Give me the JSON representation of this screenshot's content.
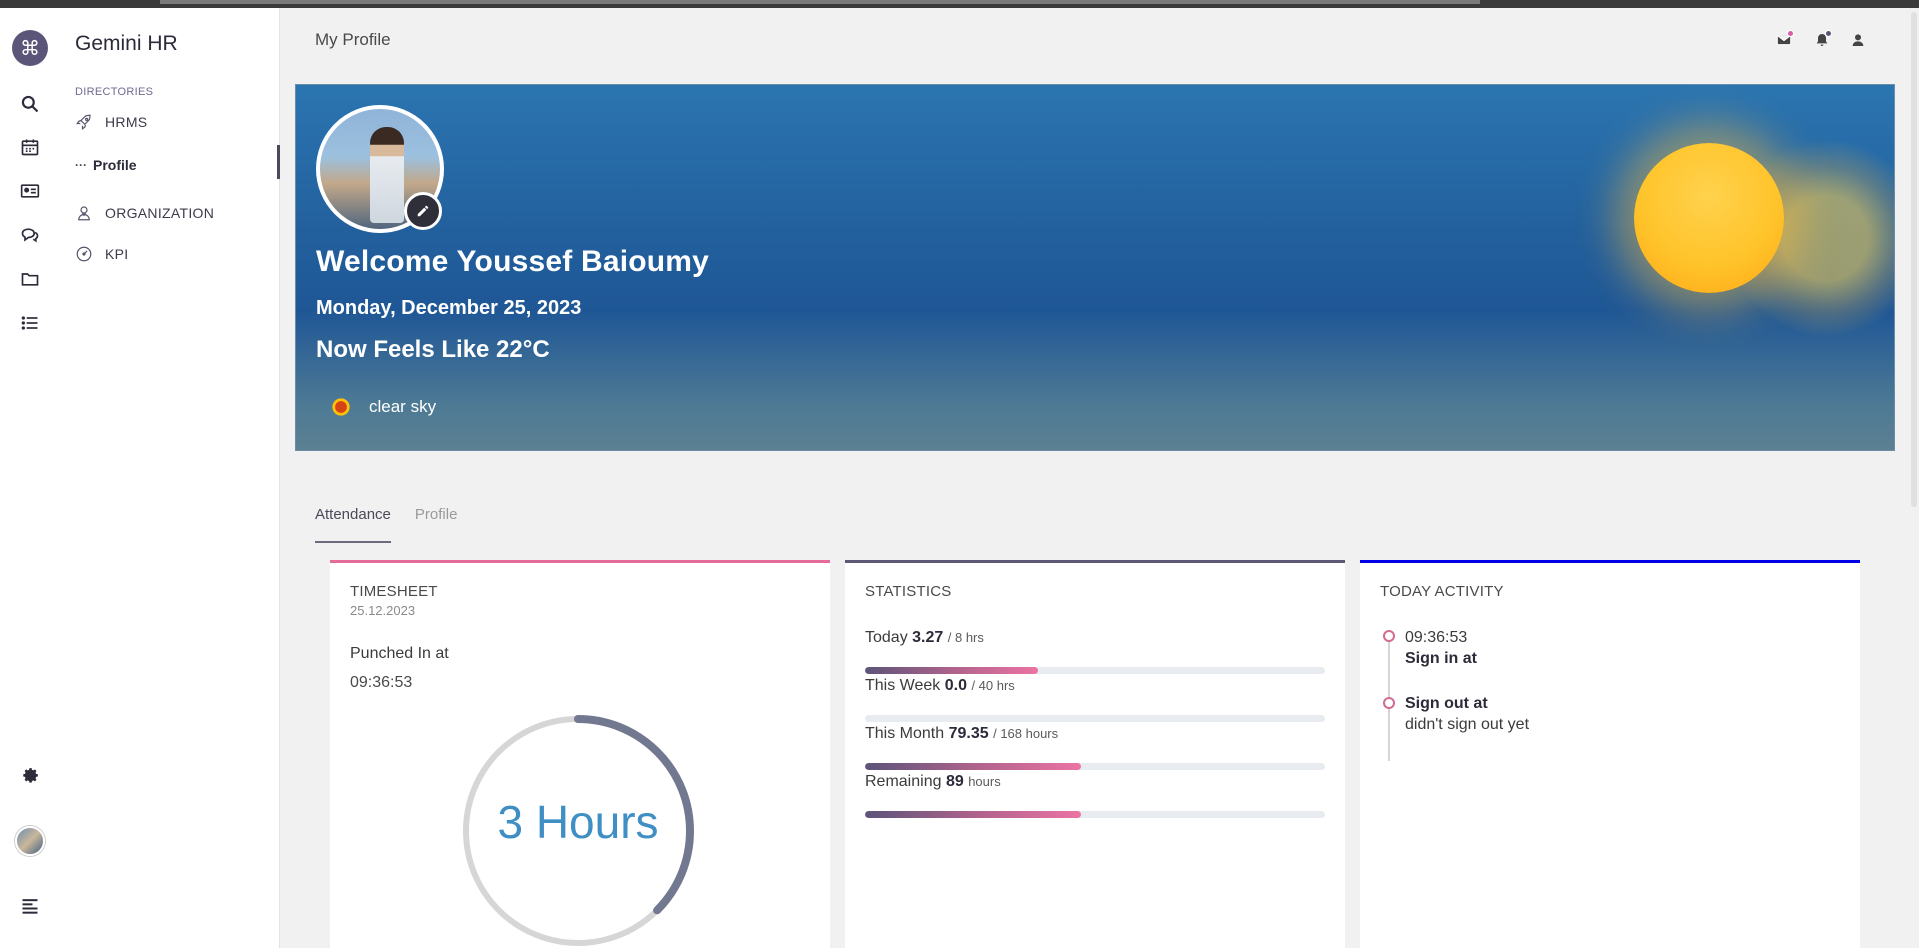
{
  "app": {
    "name": "Gemini HR"
  },
  "menu": {
    "section_label": "DIRECTORIES",
    "items": [
      {
        "label": "HRMS",
        "icon": "rocket-icon"
      },
      {
        "label": "Profile",
        "icon": "dots-icon"
      },
      {
        "label": "ORGANIZATION",
        "icon": "users-icon"
      },
      {
        "label": "KPI",
        "icon": "gauge-icon"
      }
    ]
  },
  "header": {
    "title": "My Profile"
  },
  "banner": {
    "welcome": "Welcome Youssef Baioumy",
    "date": "Monday, December 25, 2023",
    "feels_like": "Now Feels Like 22°C",
    "weather": "clear sky"
  },
  "tabs": [
    {
      "label": "Attendance",
      "active": true
    },
    {
      "label": "Profile",
      "active": false
    }
  ],
  "timesheet": {
    "title": "TIMESHEET",
    "date": "25.12.2023",
    "punch_label": "Punched In at",
    "punch_time": "09:36:53",
    "ring_label": "3 Hours",
    "ring_progress": 0.375
  },
  "statistics": {
    "title": "STATISTICS",
    "rows": [
      {
        "label": "Today",
        "value": "3.27",
        "unit": "/ 8 hrs",
        "progress": 0.375
      },
      {
        "label": "This Week",
        "value": "0.0",
        "unit": "/ 40 hrs",
        "progress": 0
      },
      {
        "label": "This Month",
        "value": "79.35",
        "unit": "/ 168 hours",
        "progress": 0.47
      },
      {
        "label": "Remaining",
        "value": "89",
        "unit": "hours",
        "progress": 0.47
      }
    ]
  },
  "activity": {
    "title": "TODAY ACTIVITY",
    "entries": [
      {
        "time": "09:36:53",
        "label": "Sign in at"
      },
      {
        "label": "Sign out at",
        "detail": "didn't sign out yet"
      }
    ]
  },
  "colors": {
    "accent": "#5b5679",
    "pink": "#e56b9a",
    "card_stats_border": "#5c5876",
    "card_activity_border": "#0000e6",
    "ring_blue": "#3f8ec4"
  }
}
